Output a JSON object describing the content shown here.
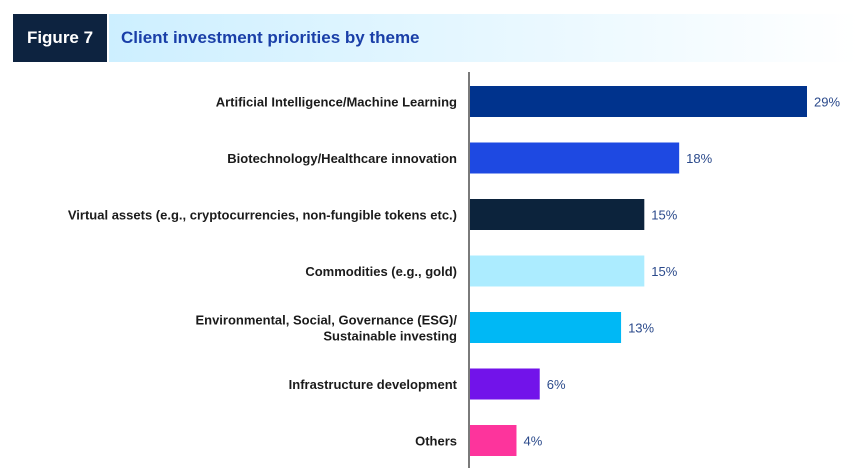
{
  "figure": {
    "label": "Figure 7",
    "title": "Client investment priorities by theme"
  },
  "chart_data": {
    "type": "bar",
    "orientation": "horizontal",
    "categories": [
      [
        "Artificial Intelligence/Machine Learning"
      ],
      [
        "Biotechnology/Healthcare innovation"
      ],
      [
        "Virtual assets (e.g., cryptocurrencies, non-fungible tokens etc.)"
      ],
      [
        "Commodities (e.g., gold)"
      ],
      [
        "Environmental, Social, Governance (ESG)/",
        "Sustainable investing"
      ],
      [
        "Infrastructure development"
      ],
      [
        "Others"
      ]
    ],
    "values": [
      29,
      18,
      15,
      15,
      13,
      6,
      4
    ],
    "value_labels": [
      "29%",
      "18%",
      "15%",
      "15%",
      "13%",
      "6%",
      "4%"
    ],
    "colors": [
      "#00338d",
      "#1e49e2",
      "#0c233c",
      "#acecff",
      "#00b8f5",
      "#7213ea",
      "#fd349c"
    ],
    "xlim": [
      0,
      29
    ],
    "grid": false,
    "legend": "none"
  }
}
